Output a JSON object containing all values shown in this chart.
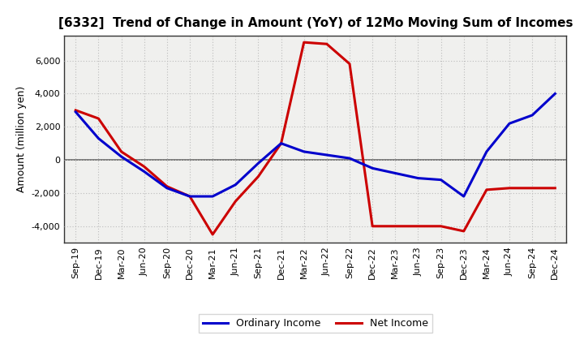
{
  "title": "[6332]  Trend of Change in Amount (YoY) of 12Mo Moving Sum of Incomes",
  "ylabel": "Amount (million yen)",
  "x_labels": [
    "Sep-19",
    "Dec-19",
    "Mar-20",
    "Jun-20",
    "Sep-20",
    "Dec-20",
    "Mar-21",
    "Jun-21",
    "Sep-21",
    "Dec-21",
    "Mar-22",
    "Jun-22",
    "Sep-22",
    "Dec-22",
    "Mar-23",
    "Jun-23",
    "Sep-23",
    "Dec-23",
    "Mar-24",
    "Jun-24",
    "Sep-24",
    "Dec-24"
  ],
  "ordinary_income": [
    2900,
    1300,
    200,
    -700,
    -1700,
    -2200,
    -2200,
    -1500,
    -200,
    1000,
    500,
    300,
    100,
    -500,
    -800,
    -1100,
    -1200,
    -2200,
    500,
    2200,
    2700,
    4000
  ],
  "net_income": [
    3000,
    2500,
    500,
    -400,
    -1600,
    -2200,
    -4500,
    -2500,
    -1000,
    1000,
    7100,
    7000,
    5800,
    -4000,
    -4000,
    -4000,
    -4000,
    -4300,
    -1800,
    -1700,
    -1700,
    -1700
  ],
  "ordinary_color": "#0000cc",
  "net_color": "#cc0000",
  "ylim": [
    -5000,
    7500
  ],
  "yticks": [
    -4000,
    -2000,
    0,
    2000,
    4000,
    6000
  ],
  "bg_color": "#ffffff",
  "plot_bg_color": "#f0f0ee",
  "grid_color": "#bbbbbb",
  "zero_line_color": "#666666",
  "title_fontsize": 11,
  "tick_fontsize": 8,
  "ylabel_fontsize": 9,
  "legend_fontsize": 9,
  "line_width": 2.2
}
